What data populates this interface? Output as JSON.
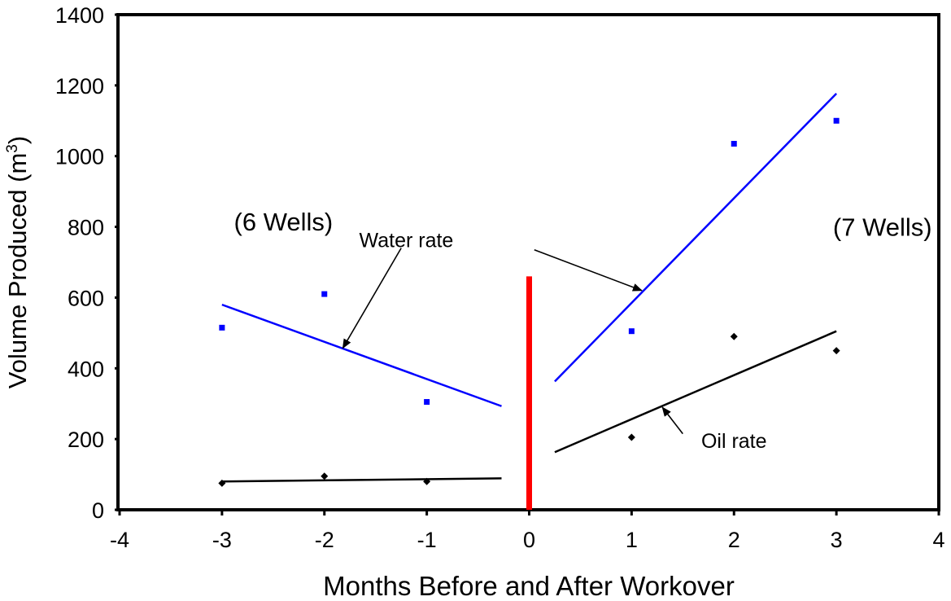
{
  "chart_data": {
    "type": "scatter",
    "xlabel": "Months Before and After Workover",
    "ylabel": "Volume Produced (m",
    "ylabel_sup": "3",
    "ylabel_close": ")",
    "xlim": [
      -4,
      4
    ],
    "ylim": [
      0,
      1400
    ],
    "xticks": [
      -4,
      -3,
      -2,
      -1,
      0,
      1,
      2,
      3,
      4
    ],
    "yticks": [
      0,
      200,
      400,
      600,
      800,
      1000,
      1200,
      1400
    ],
    "grid": false,
    "series": [
      {
        "name": "Water rate",
        "color": "#0000ff",
        "marker": "square",
        "points": [
          [
            -3,
            515
          ],
          [
            -2,
            610
          ],
          [
            -1,
            305
          ],
          [
            1,
            505
          ],
          [
            2,
            1035
          ],
          [
            3,
            1100
          ]
        ]
      },
      {
        "name": "Oil rate",
        "color": "#000000",
        "marker": "diamond",
        "points": [
          [
            -3,
            75
          ],
          [
            -2,
            95
          ],
          [
            -1,
            80
          ],
          [
            1,
            205
          ],
          [
            2,
            490
          ],
          [
            3,
            450
          ]
        ]
      }
    ],
    "trendlines": [
      {
        "series": "Water rate",
        "color": "#0000ff",
        "from": [
          -3,
          580
        ],
        "to": [
          -0.27,
          293
        ]
      },
      {
        "series": "Water rate",
        "color": "#0000ff",
        "from": [
          0.25,
          363
        ],
        "to": [
          3,
          1177
        ]
      },
      {
        "series": "Oil rate",
        "color": "#000000",
        "from": [
          -3,
          80
        ],
        "to": [
          -0.27,
          89
        ]
      },
      {
        "series": "Oil rate",
        "color": "#000000",
        "from": [
          0.25,
          163
        ],
        "to": [
          3,
          505
        ]
      }
    ],
    "divider": {
      "x": 0,
      "y_top": 660,
      "color": "#ff0000"
    },
    "annotations": {
      "left_group": {
        "text": "(6 Wells)",
        "x": -2.4,
        "y": 790
      },
      "right_group": {
        "text": "(7 Wells)",
        "x": 3.45,
        "y": 775
      },
      "water_label": {
        "text": "Water rate",
        "x": -1.2,
        "y": 743
      },
      "oil_label": {
        "text": "Oil rate",
        "x": 2.0,
        "y": 175
      },
      "arrows": [
        {
          "label": "water_label",
          "from": [
            -1.25,
            740
          ],
          "to": [
            -1.82,
            457
          ]
        },
        {
          "label": "water_label",
          "from": [
            0.05,
            735
          ],
          "to": [
            1.1,
            620
          ]
        },
        {
          "label": "oil_label",
          "from": [
            1.5,
            215
          ],
          "to": [
            1.3,
            290
          ]
        }
      ]
    }
  }
}
